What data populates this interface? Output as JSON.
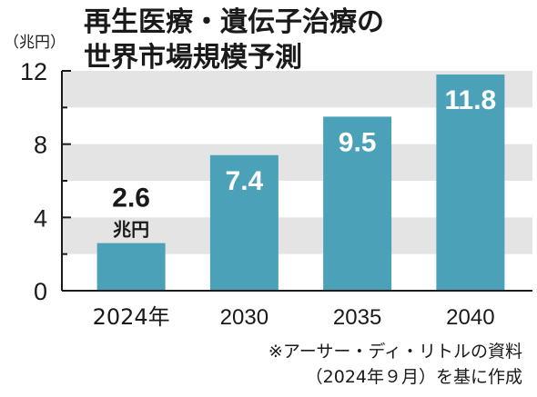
{
  "chart_data": {
    "type": "bar",
    "title_lines": [
      "再生医療・遺伝子治療の",
      "世界市場規模予測"
    ],
    "unit_label": "（兆円）",
    "categories": [
      "2024年",
      "2030",
      "2035",
      "2040"
    ],
    "values": [
      2.6,
      7.4,
      9.5,
      11.8
    ],
    "value_labels": [
      "2.6",
      "7.4",
      "9.5",
      "11.8"
    ],
    "first_value_unit": "兆円",
    "ylim": [
      0,
      12
    ],
    "yticks": [
      0,
      4,
      8,
      12
    ],
    "grid": "alternating bands",
    "colors": {
      "bar": "#4ba2b8",
      "band": "#e4e4e4",
      "axis": "#1a1a1a"
    },
    "source_lines": [
      "※アーサー・ディ・リトルの資料",
      "（2024年９月）を基に作成"
    ]
  }
}
